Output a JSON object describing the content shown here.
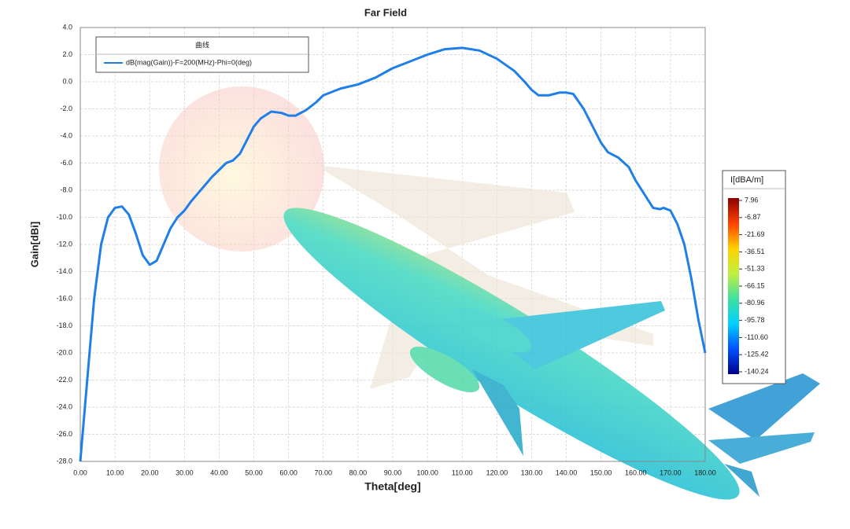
{
  "chart_data": {
    "type": "line",
    "title": "Far Field",
    "x_label": "Theta[deg]",
    "y_label": "Gain[dBi]",
    "legend_title": "曲线",
    "grid": true,
    "xlim": [
      0,
      180
    ],
    "ylim": [
      -28,
      4
    ],
    "xticks": [
      {
        "value": 0,
        "label": "0.00"
      },
      {
        "value": 10,
        "label": "10.00"
      },
      {
        "value": 20,
        "label": "20.00"
      },
      {
        "value": 30,
        "label": "30.00"
      },
      {
        "value": 40,
        "label": "40.00"
      },
      {
        "value": 50,
        "label": "50.00"
      },
      {
        "value": 60,
        "label": "60.00"
      },
      {
        "value": 70,
        "label": "70.00"
      },
      {
        "value": 80,
        "label": "80.00"
      },
      {
        "value": 90,
        "label": "90.00"
      },
      {
        "value": 100,
        "label": "100.00"
      },
      {
        "value": 110,
        "label": "110.00"
      },
      {
        "value": 120,
        "label": "120.00"
      },
      {
        "value": 130,
        "label": "130.00"
      },
      {
        "value": 140,
        "label": "140.00"
      },
      {
        "value": 150,
        "label": "150.00"
      },
      {
        "value": 160,
        "label": "160.00"
      },
      {
        "value": 170,
        "label": "170.00"
      },
      {
        "value": 180,
        "label": "180.00"
      }
    ],
    "yticks": [
      {
        "value": 4,
        "label": "4.0"
      },
      {
        "value": 2,
        "label": "2.0"
      },
      {
        "value": 0,
        "label": "0.0"
      },
      {
        "value": -2,
        "label": "-2.0"
      },
      {
        "value": -4,
        "label": "-4.0"
      },
      {
        "value": -6,
        "label": "-6.0"
      },
      {
        "value": -8,
        "label": "-8.0"
      },
      {
        "value": -10,
        "label": "-10.0"
      },
      {
        "value": -12,
        "label": "-12.0"
      },
      {
        "value": -14,
        "label": "-14.0"
      },
      {
        "value": -16,
        "label": "-16.0"
      },
      {
        "value": -18,
        "label": "-18.0"
      },
      {
        "value": -20,
        "label": "-20.0"
      },
      {
        "value": -22,
        "label": "-22.0"
      },
      {
        "value": -24,
        "label": "-24.0"
      },
      {
        "value": -26,
        "label": "-26.0"
      },
      {
        "value": -28,
        "label": "-28.0"
      }
    ],
    "x": [
      0,
      2,
      4,
      6,
      8,
      10,
      12,
      14,
      16,
      18,
      20,
      22,
      24,
      26,
      28,
      30,
      32,
      34,
      36,
      38,
      40,
      42,
      44,
      46,
      48,
      50,
      52,
      55,
      58,
      60,
      62,
      65,
      68,
      70,
      75,
      80,
      85,
      90,
      95,
      100,
      105,
      110,
      115,
      120,
      125,
      128,
      130,
      132,
      135,
      138,
      140,
      142,
      145,
      148,
      150,
      152,
      155,
      158,
      160,
      163,
      165,
      167,
      168,
      170,
      172,
      174,
      176,
      178,
      180
    ],
    "series": [
      {
        "name": "dB(mag(Gain))-F=200(MHz)-Phi=0(deg)",
        "color": "#1f7fe8",
        "values": [
          -28,
          -22,
          -16,
          -12,
          -10,
          -9.3,
          -9.2,
          -9.8,
          -11.2,
          -12.8,
          -13.5,
          -13.2,
          -12,
          -10.8,
          -10,
          -9.5,
          -8.8,
          -8.2,
          -7.6,
          -7,
          -6.5,
          -6,
          -5.8,
          -5.3,
          -4.3,
          -3.3,
          -2.7,
          -2.2,
          -2.3,
          -2.5,
          -2.5,
          -2.1,
          -1.5,
          -1,
          -0.5,
          -0.2,
          0.3,
          1,
          1.5,
          2,
          2.4,
          2.5,
          2.3,
          1.7,
          0.8,
          0,
          -0.6,
          -1,
          -1,
          -0.8,
          -0.8,
          -0.9,
          -2,
          -3.5,
          -4.5,
          -5.2,
          -5.6,
          -6.3,
          -7.3,
          -8.5,
          -9.3,
          -9.4,
          -9.3,
          -9.5,
          -10.5,
          -12,
          -14.5,
          -17.5,
          -20
        ]
      }
    ],
    "colorbar": {
      "title": "I[dBA/m]",
      "colors": [
        "#00008b",
        "#0050ff",
        "#00d0ff",
        "#40e0a0",
        "#c0f040",
        "#ffd000",
        "#ff4000",
        "#8b0000"
      ],
      "ticks": [
        7.96,
        -6.87,
        -21.69,
        -36.51,
        -51.33,
        -66.15,
        -80.96,
        -95.78,
        {
          "value": -110.6,
          "label": "-110.60"
        },
        -125.42,
        -140.24
      ]
    }
  }
}
